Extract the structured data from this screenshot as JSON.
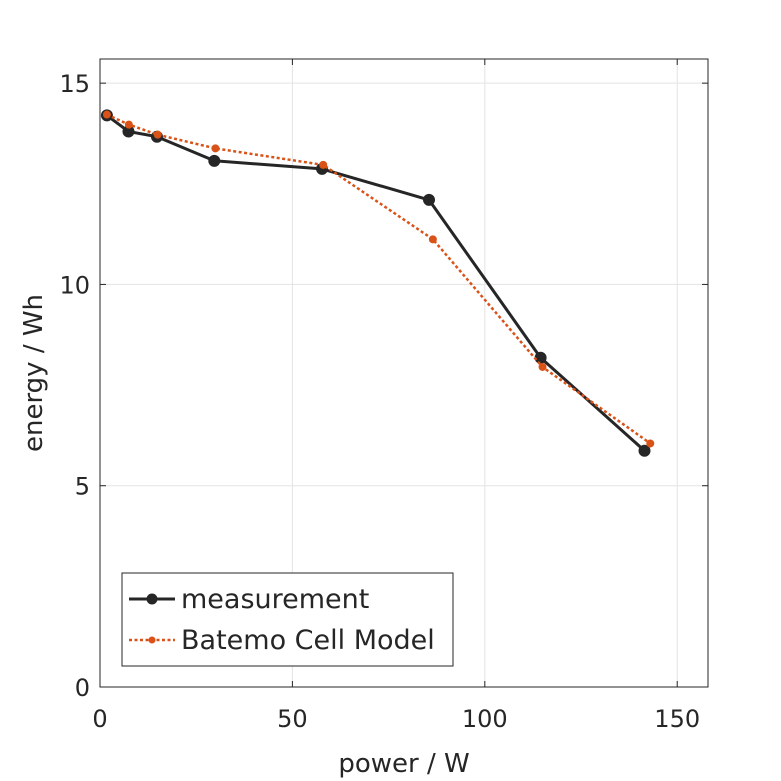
{
  "chart_data": {
    "type": "line",
    "title": "",
    "xlabel": "power / W",
    "ylabel": "energy / Wh",
    "xlim": [
      0,
      158
    ],
    "ylim": [
      0,
      15.6
    ],
    "xticks": [
      0,
      50,
      100,
      150
    ],
    "yticks": [
      0,
      5,
      10,
      15
    ],
    "xtick_labels": [
      "0",
      "50",
      "100",
      "150"
    ],
    "ytick_labels": [
      "0",
      "5",
      "10",
      "15"
    ],
    "grid": true,
    "legend_position": "bottom-left",
    "series": [
      {
        "name": "measurement",
        "color": "#262626",
        "line_style": "solid",
        "marker": "circle",
        "x": [
          1.8,
          7.4,
          14.8,
          29.7,
          57.7,
          85.5,
          114.5,
          141.5
        ],
        "y": [
          14.2,
          13.8,
          13.67,
          13.07,
          12.87,
          12.1,
          8.18,
          5.87
        ]
      },
      {
        "name": "Batemo Cell Model",
        "color": "#D95319",
        "line_style": "dotted",
        "marker": "small-circle",
        "x": [
          1.8,
          7.5,
          15.0,
          30.0,
          58.0,
          86.5,
          115.0,
          143.0
        ],
        "y": [
          14.22,
          13.97,
          13.72,
          13.38,
          12.97,
          11.12,
          7.95,
          6.05
        ]
      }
    ]
  }
}
